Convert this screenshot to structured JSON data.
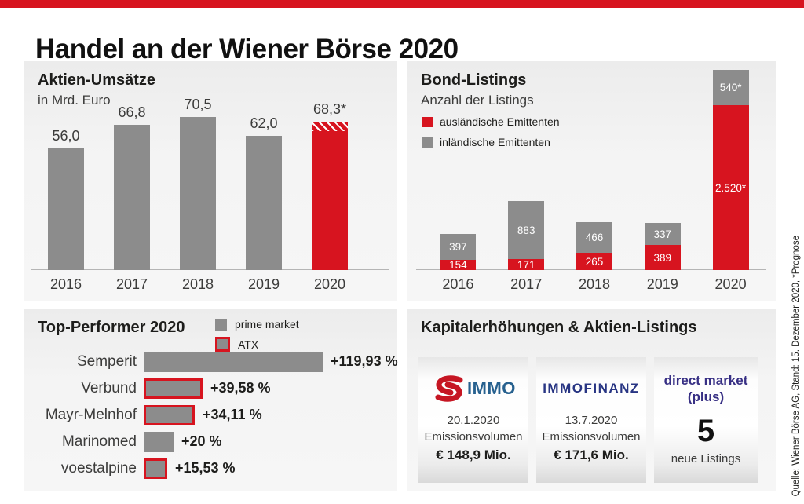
{
  "header": {
    "title": "Handel an der Wiener Börse 2020"
  },
  "source_note": "Quelle: Wiener Börse AG, Stand: 15. Dezember 2020, *Prognose",
  "colors": {
    "accent_red": "#d7141f",
    "bar_gray": "#8c8c8c",
    "simmo_red": "#c61623",
    "simmo_blue": "#27618f",
    "immofinanz_blue": "#283583",
    "direct_market_purple": "#372f84"
  },
  "chart_data": [
    {
      "id": "aktien-umsaetze",
      "type": "bar",
      "title": "Aktien-Umsätze",
      "subtitle": "in Mrd. Euro",
      "categories": [
        "2016",
        "2017",
        "2018",
        "2019",
        "2020"
      ],
      "values": [
        56.0,
        66.8,
        70.5,
        62.0,
        68.3
      ],
      "value_labels": [
        "56,0",
        "66,8",
        "70,5",
        "62,0",
        "68,3*"
      ],
      "highlight_index": 4,
      "ylim": [
        0,
        70.5
      ],
      "grid": false
    },
    {
      "id": "bond-listings",
      "type": "stacked-bar",
      "title": "Bond-Listings",
      "subtitle": "Anzahl der Listings",
      "categories": [
        "2016",
        "2017",
        "2018",
        "2019",
        "2020"
      ],
      "series": [
        {
          "name": "ausländische Emittenten",
          "color": "#d7141f",
          "position": "bottom",
          "values": [
            154,
            171,
            265,
            389,
            2520
          ],
          "value_labels": [
            "154",
            "171",
            "265",
            "389",
            "2.520*"
          ]
        },
        {
          "name": "inländische Emittenten",
          "color": "#8c8c8c",
          "position": "top",
          "values": [
            397,
            883,
            466,
            337,
            540
          ],
          "value_labels": [
            "397",
            "883",
            "466",
            "337",
            "540*"
          ]
        }
      ],
      "legend_position": "top-left",
      "grid": false
    },
    {
      "id": "top-performer",
      "type": "hbar",
      "title": "Top-Performer 2020",
      "legend": [
        {
          "label": "prime market",
          "style": "gray"
        },
        {
          "label": "ATX",
          "style": "gray-red-border"
        }
      ],
      "rows": [
        {
          "label": "Semperit",
          "value": 119.93,
          "value_label": "+119,93 %",
          "group": "prime market"
        },
        {
          "label": "Verbund",
          "value": 39.58,
          "value_label": "+39,58 %",
          "group": "ATX"
        },
        {
          "label": "Mayr-Melnhof",
          "value": 34.11,
          "value_label": "+34,11 %",
          "group": "ATX"
        },
        {
          "label": "Marinomed",
          "value": 20,
          "value_label": "+20 %",
          "group": "prime market"
        },
        {
          "label": "voestalpine",
          "value": 15.53,
          "value_label": "+15,53 %",
          "group": "ATX"
        }
      ]
    }
  ],
  "capital": {
    "title": "Kapitalerhöhungen & Aktien-Listings",
    "cards": [
      {
        "logo": "S IMMO",
        "logo_text": "IMMO",
        "date": "20.1.2020",
        "line": "Emissionsvolumen",
        "amount": "€ 148,9 Mio."
      },
      {
        "logo": "IMMOFINANZ",
        "date": "13.7.2020",
        "line": "Emissionsvolumen",
        "amount": "€ 171,6 Mio."
      },
      {
        "logo": "direct market (plus)",
        "logo_line1": "direct market",
        "logo_line2": "(plus)",
        "count": "5",
        "count_label": "neue Listings"
      }
    ]
  }
}
